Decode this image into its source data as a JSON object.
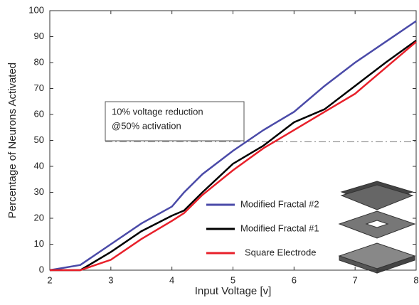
{
  "chart_data": {
    "type": "line",
    "xlabel": "Input Voltage [v]",
    "ylabel": "Percentage of Neurons Activated",
    "x": [
      2,
      2.5,
      3,
      3.5,
      4,
      4.2,
      4.5,
      5,
      5.5,
      6,
      6.5,
      7,
      7.5,
      8
    ],
    "series": [
      {
        "name": "Modified Fractal #2",
        "color": "#4a4aa8",
        "values": [
          0,
          2,
          10,
          18,
          24.5,
          30,
          37,
          46,
          54,
          61,
          71,
          80,
          88,
          96
        ]
      },
      {
        "name": "Modified Fractal #1",
        "color": "#000000",
        "values": [
          0,
          0,
          7,
          15,
          21,
          23,
          30,
          41,
          48,
          57,
          62,
          71,
          80,
          88.5
        ]
      },
      {
        "name": "Square Electrode",
        "color": "#e8202a",
        "values": [
          0,
          0,
          4,
          12,
          19,
          22,
          29,
          38.5,
          47,
          54,
          61,
          68,
          78,
          88
        ]
      }
    ],
    "xlim": [
      2,
      8
    ],
    "xticks": [
      2,
      3,
      4,
      5,
      6,
      7,
      8
    ],
    "ylim": [
      0,
      100
    ],
    "yticks": [
      0,
      10,
      20,
      30,
      40,
      50,
      60,
      70,
      80,
      90,
      100
    ],
    "grid": false,
    "legend": "lower right",
    "annotation": {
      "lines": [
        "10% voltage reduction",
        "@50% activation"
      ],
      "threshold": 49.5
    }
  }
}
